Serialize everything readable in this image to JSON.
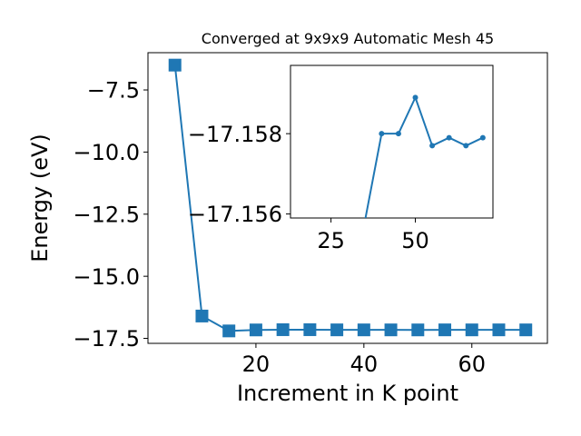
{
  "chart_data": [
    {
      "type": "line",
      "title": "Converged at 9x9x9 Automatic Mesh 45",
      "xlabel": "Increment in K point",
      "ylabel": "Energy (eV)",
      "marker": "square",
      "color": "#1f77b4",
      "x": [
        5,
        10,
        15,
        20,
        25,
        30,
        35,
        40,
        45,
        50,
        55,
        60,
        65,
        70
      ],
      "y": [
        -6.5,
        -16.6,
        -17.2,
        -17.16,
        -17.15,
        -17.15,
        -17.157,
        -17.158,
        -17.158,
        -17.159,
        -17.157,
        -17.158,
        -17.157,
        -17.158
      ],
      "xlim": [
        0,
        74
      ],
      "ylim": [
        -17.7,
        -6.0
      ],
      "xticks": [
        20,
        40,
        60
      ],
      "xtick_labels": [
        "20",
        "40",
        "60"
      ],
      "yticks": [
        -7.5,
        -10.0,
        -12.5,
        -15.0,
        -17.5
      ],
      "ytick_labels": [
        "−7.5",
        "−10.0",
        "−12.5",
        "−15.0",
        "−17.5"
      ]
    },
    {
      "type": "line",
      "inset": true,
      "marker": "circle",
      "color": "#1f77b4",
      "x": [
        35,
        40,
        45,
        50,
        55,
        60,
        65,
        70
      ],
      "y": [
        -17.1558,
        -17.158,
        -17.158,
        -17.1589,
        -17.1577,
        -17.1579,
        -17.1577,
        -17.1579
      ],
      "xlim": [
        13,
        73
      ],
      "ylim": [
        -17.1559,
        -17.1597
      ],
      "xticks": [
        25,
        50
      ],
      "xtick_labels": [
        "25",
        "50"
      ],
      "yticks": [
        -17.158,
        -17.156
      ],
      "ytick_labels": [
        "−17.158",
        "−17.156"
      ]
    }
  ]
}
